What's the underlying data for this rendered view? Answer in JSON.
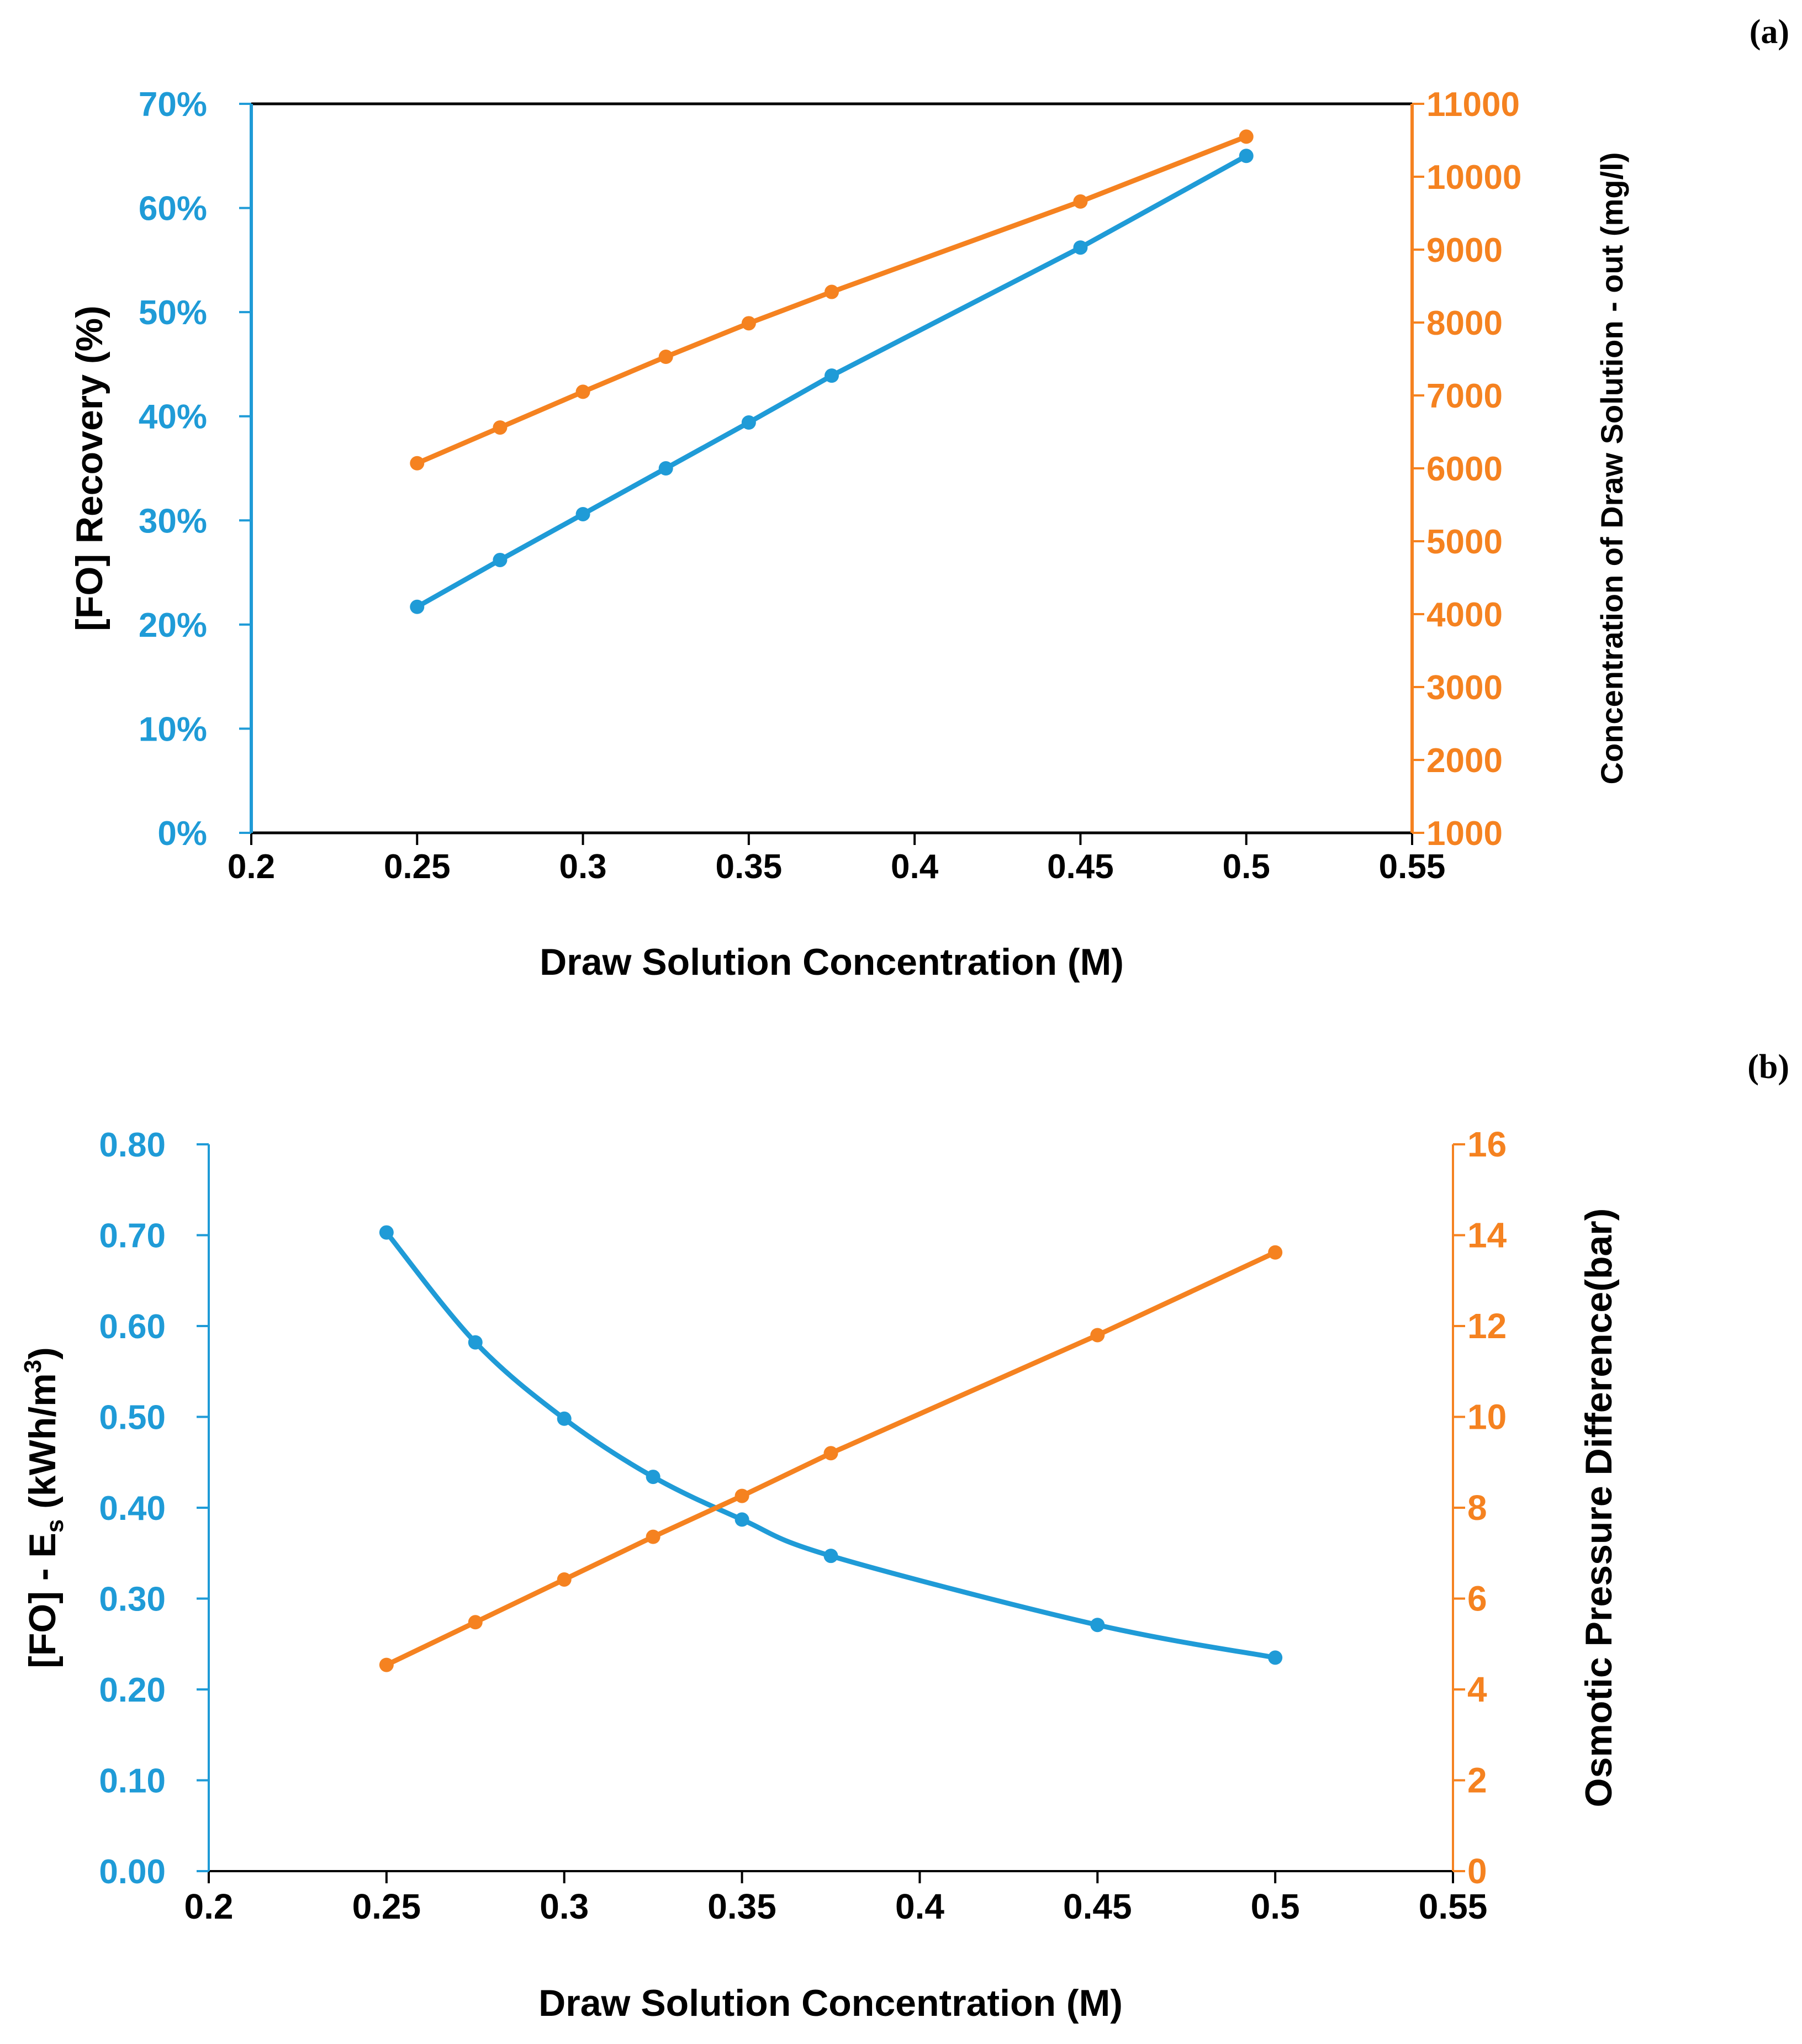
{
  "colors": {
    "blue": "#1F9BD7",
    "orange": "#F58220",
    "axis": "#000000"
  },
  "chart_data": [
    {
      "type": "line",
      "panel_label": "(a)",
      "title": "",
      "xlabel": "Draw Solution Concentration (M)",
      "ylabel_left": "[FO] Recovery (%)",
      "ylabel_right": "Concentration of Draw Solution - out (mg/l)",
      "xlim": [
        0.2,
        0.55
      ],
      "ylim_left": [
        0,
        70
      ],
      "ylim_right": [
        1000,
        11000
      ],
      "x_ticks": [
        "0.2",
        "0.25",
        "0.3",
        "0.35",
        "0.4",
        "0.45",
        "0.5",
        "0.55"
      ],
      "y_left_ticks": [
        "0%",
        "10%",
        "20%",
        "30%",
        "40%",
        "50%",
        "60%",
        "70%"
      ],
      "y_right_ticks": [
        "1000",
        "2000",
        "3000",
        "4000",
        "5000",
        "6000",
        "7000",
        "8000",
        "9000",
        "10000",
        "11000"
      ],
      "x": [
        0.25,
        0.275,
        0.3,
        0.325,
        0.35,
        0.375,
        0.45,
        0.5
      ],
      "series": [
        {
          "name": "[FO] Recovery",
          "axis": "left",
          "color": "blue",
          "smooth": false,
          "values": [
            21.7,
            26.2,
            30.6,
            35.0,
            39.4,
            43.9,
            56.2,
            65.0
          ]
        },
        {
          "name": "Concentration of Draw Solution - out",
          "axis": "right",
          "color": "orange",
          "smooth": false,
          "values": [
            6070,
            6560,
            7050,
            7530,
            7990,
            8420,
            9660,
            10550
          ]
        }
      ]
    },
    {
      "type": "line",
      "panel_label": "(b)",
      "title": "",
      "xlabel": "Draw Solution Concentration (M)",
      "ylabel_left_main": "[FO] - E",
      "ylabel_left_sub": "s",
      "ylabel_left_tail": " (kWh/m",
      "ylabel_left_sup": "3",
      "ylabel_left_end": ")",
      "ylabel_right": "Osmotic Pressure Difference(bar)",
      "xlim": [
        0.2,
        0.55
      ],
      "ylim_left": [
        0,
        0.8
      ],
      "ylim_right": [
        0,
        16
      ],
      "x_ticks": [
        "0.2",
        "0.25",
        "0.3",
        "0.35",
        "0.4",
        "0.45",
        "0.5",
        "0.55"
      ],
      "y_left_ticks": [
        "0.00",
        "0.10",
        "0.20",
        "0.30",
        "0.40",
        "0.50",
        "0.60",
        "0.70",
        "0.80"
      ],
      "y_right_ticks": [
        "0",
        "2",
        "4",
        "6",
        "8",
        "10",
        "12",
        "14",
        "16"
      ],
      "x": [
        0.25,
        0.275,
        0.3,
        0.325,
        0.35,
        0.375,
        0.45,
        0.5
      ],
      "series": [
        {
          "name": "[FO] - Es",
          "axis": "left",
          "color": "blue",
          "smooth": true,
          "values": [
            0.703,
            0.582,
            0.498,
            0.434,
            0.387,
            0.347,
            0.271,
            0.235
          ]
        },
        {
          "name": "Osmotic Pressure Difference",
          "axis": "right",
          "color": "orange",
          "smooth": false,
          "values": [
            4.54,
            5.48,
            6.42,
            7.36,
            8.26,
            9.2,
            11.8,
            13.62
          ]
        }
      ]
    }
  ]
}
